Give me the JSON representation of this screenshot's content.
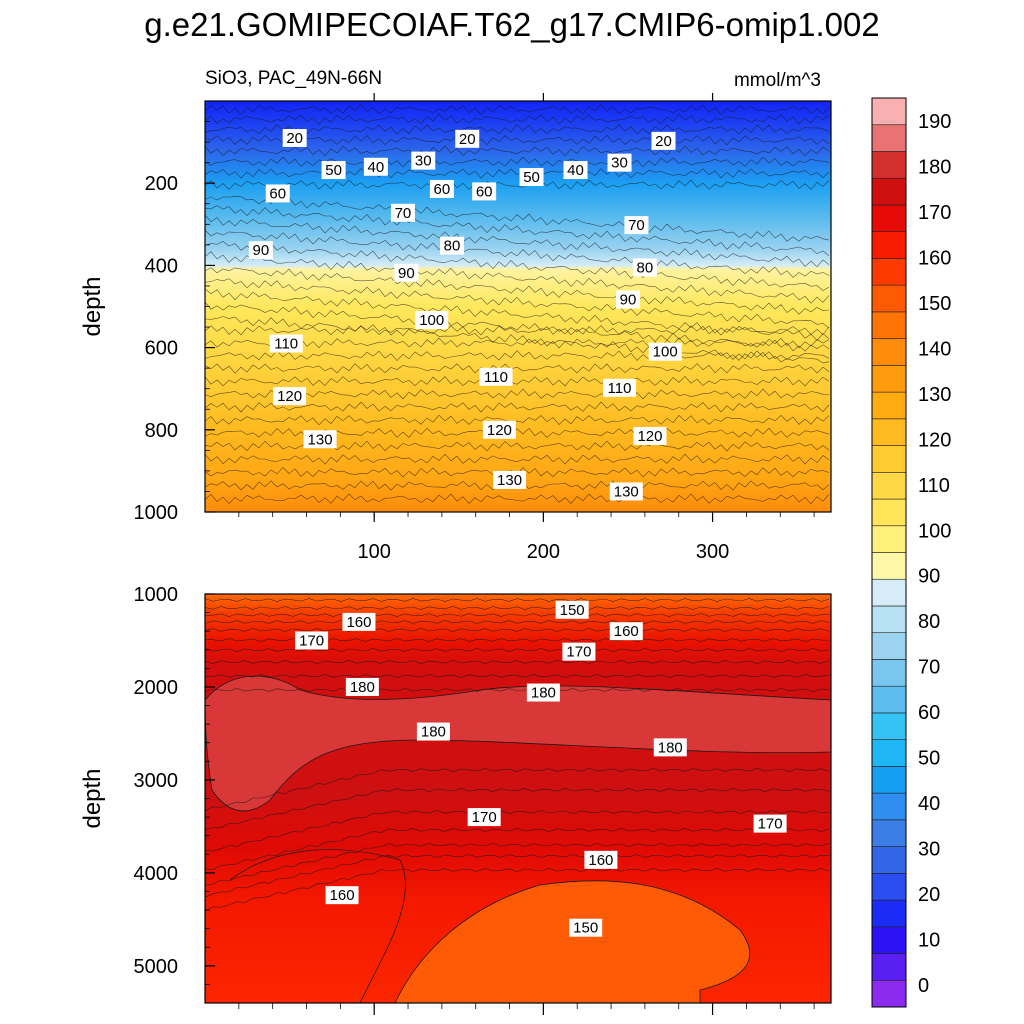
{
  "title": "g.e21.GOMIPECOIAF.T62_g17.CMIP6-omip1.002",
  "chart_data": [
    {
      "type": "contour",
      "panel": "upper",
      "variable_label": "SiO3, PAC_49N-66N",
      "units_label": "mmol/m^3",
      "ylabel": "depth",
      "xlabel": "",
      "x_range": [
        0,
        370
      ],
      "y_range": [
        0,
        1000
      ],
      "y_reversed": true,
      "xticks": [
        "100",
        "200",
        "300"
      ],
      "xtick_values": [
        100,
        200,
        300
      ],
      "yticks": [
        "200",
        "400",
        "600",
        "800",
        "1000"
      ],
      "ytick_values": [
        200,
        400,
        600,
        800,
        1000
      ],
      "contour_labels": [
        {
          "text": "20",
          "x": 53,
          "d": 90
        },
        {
          "text": "20",
          "x": 155,
          "d": 92
        },
        {
          "text": "20",
          "x": 271,
          "d": 97
        },
        {
          "text": "50",
          "x": 76,
          "d": 168
        },
        {
          "text": "40",
          "x": 101,
          "d": 160
        },
        {
          "text": "30",
          "x": 129,
          "d": 145
        },
        {
          "text": "60",
          "x": 43,
          "d": 225
        },
        {
          "text": "60",
          "x": 140,
          "d": 214
        },
        {
          "text": "60",
          "x": 165,
          "d": 220
        },
        {
          "text": "50",
          "x": 193,
          "d": 185
        },
        {
          "text": "40",
          "x": 219,
          "d": 168
        },
        {
          "text": "30",
          "x": 245,
          "d": 150
        },
        {
          "text": "70",
          "x": 117,
          "d": 272
        },
        {
          "text": "70",
          "x": 255,
          "d": 302
        },
        {
          "text": "90",
          "x": 33,
          "d": 363
        },
        {
          "text": "80",
          "x": 146,
          "d": 352
        },
        {
          "text": "90",
          "x": 119,
          "d": 418
        },
        {
          "text": "80",
          "x": 260,
          "d": 405
        },
        {
          "text": "90",
          "x": 250,
          "d": 483
        },
        {
          "text": "100",
          "x": 134,
          "d": 533
        },
        {
          "text": "110",
          "x": 48,
          "d": 590
        },
        {
          "text": "100",
          "x": 272,
          "d": 610
        },
        {
          "text": "110",
          "x": 172,
          "d": 671
        },
        {
          "text": "110",
          "x": 245,
          "d": 698
        },
        {
          "text": "120",
          "x": 50,
          "d": 718
        },
        {
          "text": "120",
          "x": 174,
          "d": 800
        },
        {
          "text": "120",
          "x": 263,
          "d": 815
        },
        {
          "text": "130",
          "x": 68,
          "d": 823
        },
        {
          "text": "130",
          "x": 180,
          "d": 922
        },
        {
          "text": "130",
          "x": 249,
          "d": 950
        }
      ]
    },
    {
      "type": "contour",
      "panel": "lower",
      "ylabel": "depth",
      "xlabel": "",
      "x_range": [
        0,
        370
      ],
      "y_range": [
        1000,
        5400
      ],
      "y_reversed": true,
      "yticks": [
        "1000",
        "2000",
        "3000",
        "4000",
        "5000"
      ],
      "ytick_values": [
        1000,
        2000,
        3000,
        4000,
        5000
      ],
      "contour_labels": [
        {
          "text": "160",
          "x": 91,
          "d": 1300
        },
        {
          "text": "170",
          "x": 63,
          "d": 1500
        },
        {
          "text": "150",
          "x": 217,
          "d": 1170
        },
        {
          "text": "160",
          "x": 249,
          "d": 1400
        },
        {
          "text": "170",
          "x": 221,
          "d": 1620
        },
        {
          "text": "180",
          "x": 93,
          "d": 2000
        },
        {
          "text": "180",
          "x": 200,
          "d": 2060
        },
        {
          "text": "180",
          "x": 135,
          "d": 2480
        },
        {
          "text": "180",
          "x": 275,
          "d": 2650
        },
        {
          "text": "170",
          "x": 165,
          "d": 3400
        },
        {
          "text": "170",
          "x": 334,
          "d": 3470
        },
        {
          "text": "160",
          "x": 234,
          "d": 3860
        },
        {
          "text": "160",
          "x": 81,
          "d": 4240
        },
        {
          "text": "150",
          "x": 225,
          "d": 4590
        }
      ]
    }
  ],
  "colorbar": {
    "levels": [
      "0",
      "10",
      "20",
      "30",
      "40",
      "50",
      "60",
      "70",
      "80",
      "90",
      "100",
      "110",
      "120",
      "130",
      "140",
      "150",
      "160",
      "170",
      "180",
      "190"
    ],
    "colors": [
      "#8b2bf0",
      "#5a1ff2",
      "#2d12f5",
      "#1a2cf6",
      "#2b4ef0",
      "#3366e6",
      "#3b7ee6",
      "#2f8ef0",
      "#149ff2",
      "#1fb6f5",
      "#34c3f2",
      "#5cbdee",
      "#79c6ee",
      "#9bd3f0",
      "#b9e1f5",
      "#d6ecf8",
      "#fff7a8",
      "#fff07c",
      "#ffe55a",
      "#ffd847",
      "#ffcb30",
      "#ffba1f",
      "#ffab12",
      "#ff9c0d",
      "#ff8c0a",
      "#ff7406",
      "#ff5a02",
      "#ff3a00",
      "#f71c00",
      "#e60a06",
      "#cf0f0f",
      "#d42f2f",
      "#ea7272",
      "#f8b0b0"
    ]
  }
}
